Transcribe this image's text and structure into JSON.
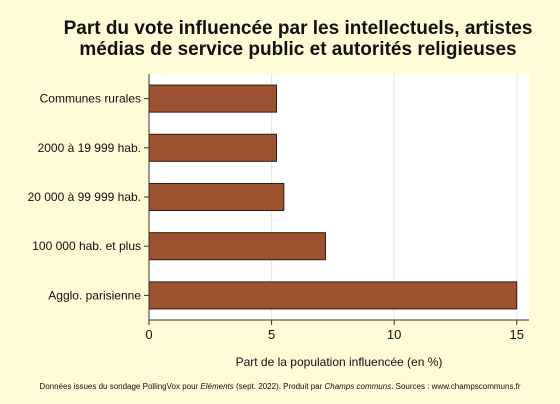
{
  "title": "Part du vote influencée par les intellectuels, artistes médias de service public et autorités religieuses",
  "title_lines": [
    "Part du vote influencée par les intellectuels, artistes",
    "médias de service public et autorités religieuses"
  ],
  "footer": {
    "pre": "Données issues du sondage PollingVox pour ",
    "publication": "Eléments",
    "mid": " (sept. 2022). Produit par ",
    "producer": "Champs communs",
    "post": ". Sources : www.champscommuns.fr"
  },
  "colors": {
    "background": "#fefbd6",
    "plot_background": "#ffffff",
    "bar_fill": "#9a5230",
    "bar_stroke": "#3a1a0c",
    "grid": "#e6e6e6",
    "axis": "#333333"
  },
  "chart_data": {
    "type": "bar",
    "orientation": "horizontal",
    "categories": [
      "Communes rurales",
      "2000 à 19 999 hab.",
      "20 000 à 99 999 hab.",
      "100 000 hab. et plus",
      "Agglo. parisienne"
    ],
    "values": [
      5.2,
      5.2,
      5.5,
      7.2,
      15.0
    ],
    "xlabel": "Part de la population influencée (en %)",
    "ylabel": "",
    "xlim": [
      0,
      15.5
    ],
    "xticks": [
      0,
      5,
      10,
      15
    ],
    "grid": true
  }
}
